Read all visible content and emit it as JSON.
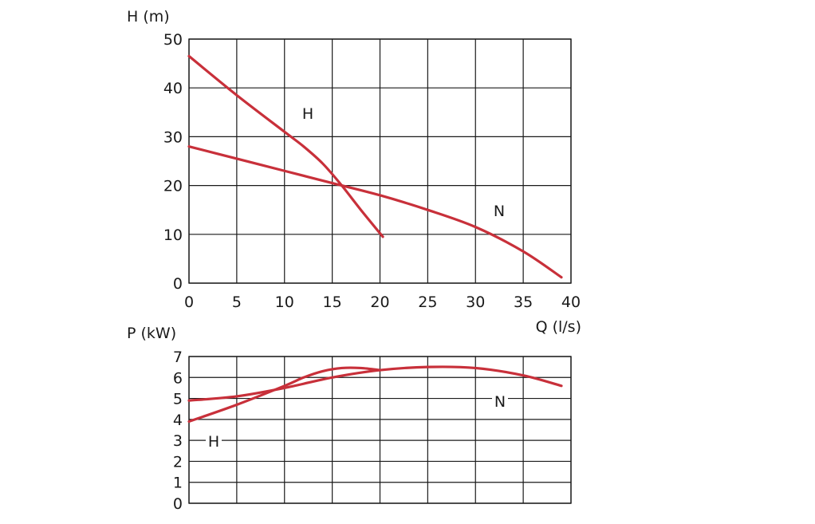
{
  "colors": {
    "curve": "#c8303a",
    "grid": "#1a1a1a",
    "background": "#ffffff"
  },
  "chart_data": [
    {
      "type": "line",
      "title": "",
      "xlabel": "Q (l/s)",
      "ylabel": "H (m)",
      "xlim": [
        0,
        40
      ],
      "ylim": [
        0,
        50
      ],
      "xticks": [
        0,
        5,
        10,
        15,
        20,
        25,
        30,
        35,
        40
      ],
      "yticks": [
        0,
        10,
        20,
        30,
        40,
        50
      ],
      "grid": true,
      "series": [
        {
          "name": "H",
          "x": [
            0,
            5,
            10,
            12,
            14,
            16,
            18,
            20.3
          ],
          "y": [
            46.5,
            38.5,
            31,
            28,
            24.5,
            20,
            15,
            9.5
          ]
        },
        {
          "name": "N",
          "x": [
            0,
            5,
            10,
            15,
            20,
            25,
            30,
            35,
            39
          ],
          "y": [
            28,
            25.5,
            23,
            20.5,
            18,
            15,
            11.5,
            6.5,
            1.2
          ]
        }
      ]
    },
    {
      "type": "line",
      "title": "",
      "xlabel": "",
      "ylabel": "P (kW)",
      "xlim": [
        0,
        40
      ],
      "ylim": [
        0,
        7
      ],
      "xticks": [
        0,
        5,
        10,
        15,
        20,
        25,
        30,
        35,
        40
      ],
      "yticks": [
        0,
        1,
        2,
        3,
        4,
        5,
        6,
        7
      ],
      "grid": true,
      "series": [
        {
          "name": "H",
          "x": [
            0,
            5,
            10,
            12,
            14,
            16,
            18,
            20
          ],
          "y": [
            3.9,
            4.7,
            5.6,
            6.0,
            6.3,
            6.45,
            6.45,
            6.35
          ]
        },
        {
          "name": "N",
          "x": [
            0,
            5,
            10,
            15,
            20,
            25,
            30,
            35,
            39
          ],
          "y": [
            4.9,
            5.1,
            5.5,
            6.0,
            6.35,
            6.5,
            6.45,
            6.1,
            5.6
          ]
        }
      ]
    }
  ]
}
